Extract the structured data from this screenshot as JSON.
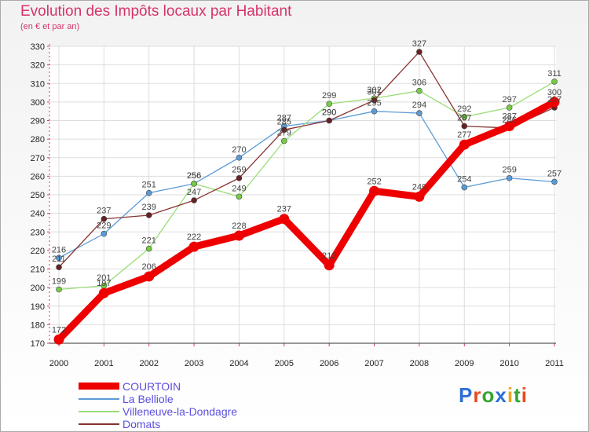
{
  "header": {
    "title": "Evolution des Impôts locaux par Habitant",
    "subtitle": "(en € et par an)"
  },
  "logo": {
    "text": "Proxiti",
    "letter_colors": [
      "#2f6fd6",
      "#e84a1f",
      "#33a532",
      "#2f6fd6",
      "#e8a51f",
      "#33a532",
      "#e84a1f"
    ]
  },
  "chart_data": {
    "type": "line",
    "title": "Evolution des Impôts locaux par Habitant",
    "subtitle": "(en € et par an)",
    "x": [
      "2000",
      "2001",
      "2002",
      "2003",
      "2004",
      "2005",
      "2006",
      "2007",
      "2008",
      "2009",
      "2010",
      "2011"
    ],
    "ylim": [
      170,
      330
    ],
    "yticks": [
      170,
      180,
      190,
      200,
      210,
      220,
      230,
      240,
      250,
      260,
      270,
      280,
      290,
      300,
      310,
      320,
      330
    ],
    "grid": true,
    "legend_position": "bottom-left",
    "series": [
      {
        "name": "La Belliole",
        "color": "#5b9bd5",
        "marker_color": "#5b9bd5",
        "values": [
          216,
          229,
          251,
          256,
          270,
          287,
          290,
          295,
          294,
          254,
          259,
          257
        ]
      },
      {
        "name": "Villeneuve-la-Dondagre",
        "color": "#99dd77",
        "marker_color": "#77cc44",
        "values": [
          199,
          201,
          221,
          256,
          249,
          279,
          299,
          302,
          306,
          292,
          297,
          311
        ]
      },
      {
        "name": "Domats",
        "color": "#883333",
        "marker_color": "#662222",
        "values": [
          211,
          237,
          239,
          247,
          259,
          285,
          290,
          301,
          327,
          287,
          286,
          297
        ]
      },
      {
        "name": "COURTOIN",
        "color": "#ee0000",
        "marker_color": "#ee0000",
        "bold": true,
        "values": [
          172,
          197,
          206,
          222,
          228,
          237,
          212,
          252,
          249,
          277,
          287,
          300
        ]
      }
    ],
    "legend_order": [
      "COURTOIN",
      "La Belliole",
      "Villeneuve-la-Dondagre",
      "Domats"
    ]
  }
}
